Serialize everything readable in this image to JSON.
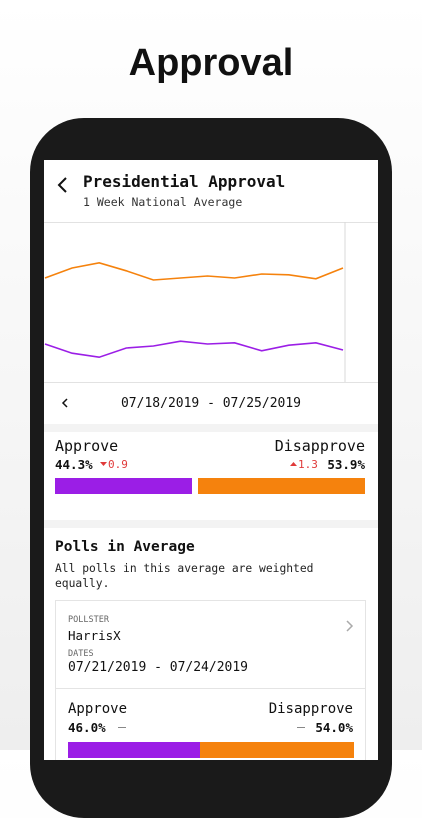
{
  "header": {
    "promo_title": "Approval",
    "title": "Presidential Approval",
    "subtitle": "1 Week National Average"
  },
  "chart": {
    "type": "line",
    "ylim": [
      40,
      60
    ],
    "series": [
      {
        "color": "#f5820d",
        "values": [
          53.0,
          54.25,
          54.9,
          53.9,
          52.75,
          53.0,
          53.25,
          53.0,
          53.5,
          53.4,
          52.9,
          54.25
        ]
      },
      {
        "color": "#9b1ee6",
        "values": [
          44.75,
          43.6,
          43.1,
          44.25,
          44.5,
          45.1,
          44.75,
          44.9,
          43.9,
          44.6,
          44.9,
          44.0
        ]
      }
    ]
  },
  "date_range": "07/18/2019 - 07/25/2019",
  "summary": {
    "approve": {
      "label": "Approve",
      "value": 44.3,
      "value_label": "44.3%",
      "change": 0.9,
      "color": "#9b1ee6"
    },
    "disapprove": {
      "label": "Disapprove",
      "value": 53.9,
      "value_label": "53.9%",
      "change": 1.3,
      "color": "#f5820d"
    }
  },
  "polls": {
    "title": "Polls in Average",
    "description": "All polls in this average are weighted equally.",
    "items": [
      {
        "pollster_label": "POLLSTER",
        "pollster": "HarrisX",
        "dates_label": "DATES",
        "dates": "07/21/2019 - 07/24/2019",
        "approve": {
          "label": "Approve",
          "value": 46.0,
          "value_label": "46.0%"
        },
        "disapprove": {
          "label": "Disapprove",
          "value": 54.0,
          "value_label": "54.0%"
        }
      }
    ]
  }
}
